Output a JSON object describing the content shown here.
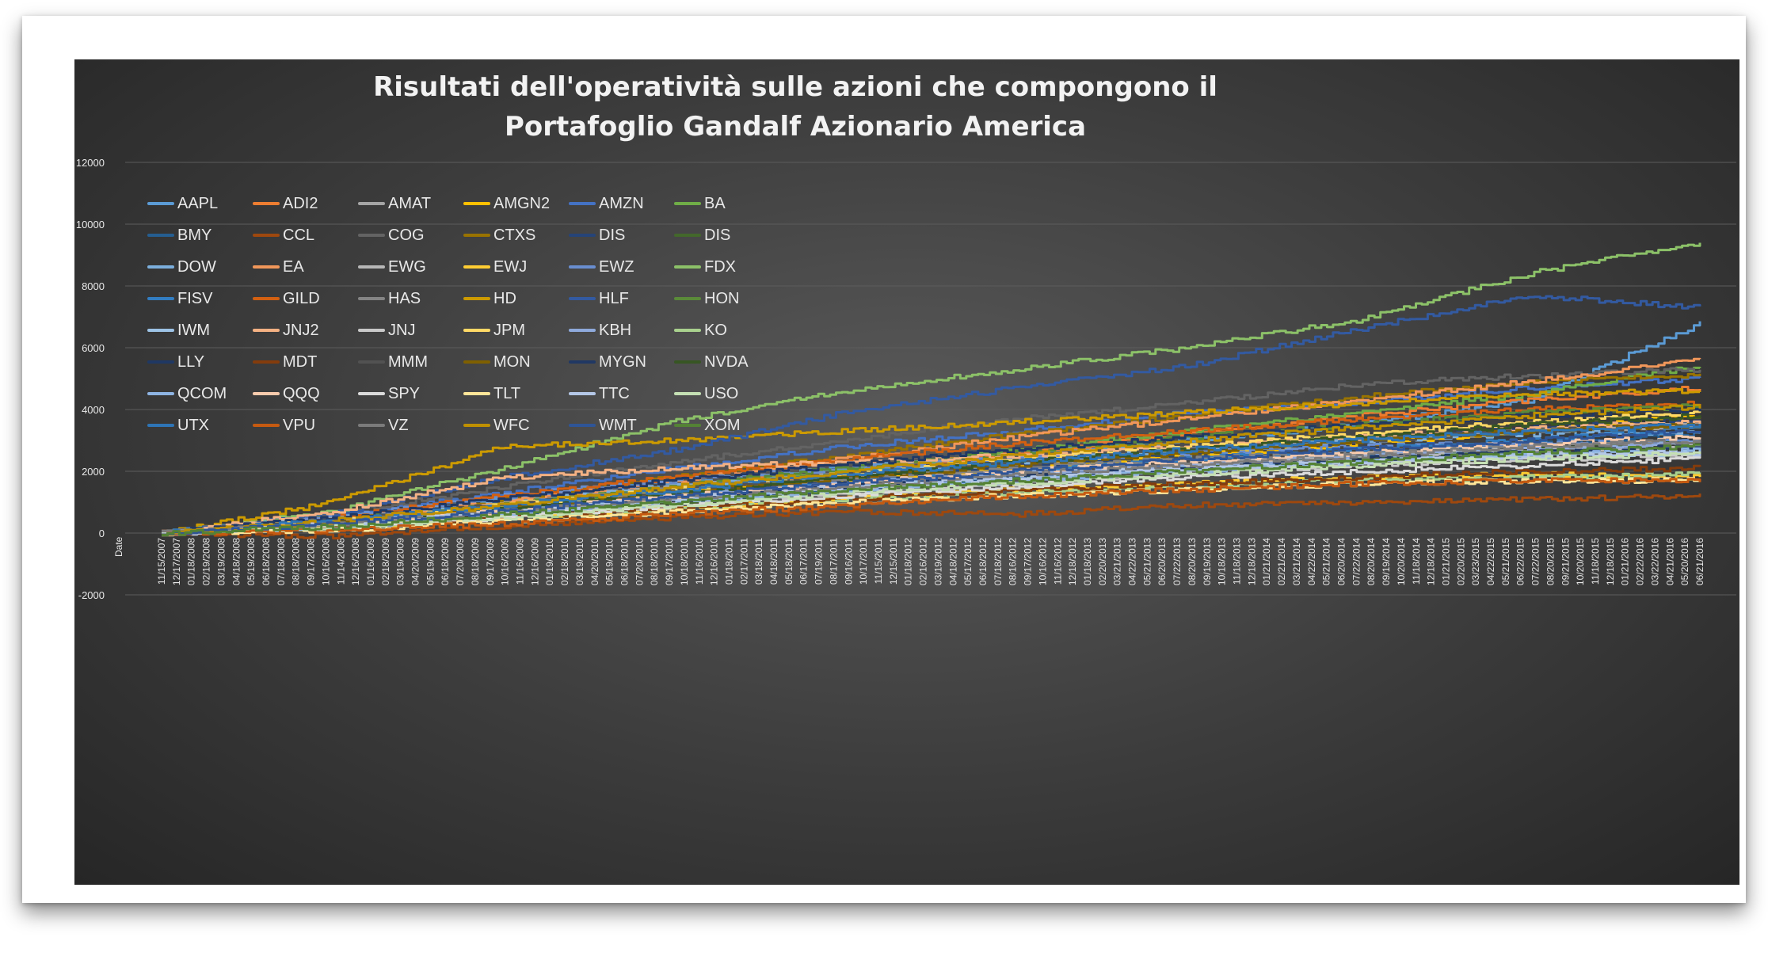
{
  "title_lines": [
    "Risultati dell'operatività sulle azioni che compongono il",
    "Portafoglio Gandalf Azionario America"
  ],
  "colors": {
    "background": "#3a3a3a",
    "gridline": "#5c5c5c",
    "text": "#e8e8e8"
  },
  "chart_data": {
    "type": "line",
    "title": "Risultati dell'operatività sulle azioni che compongono il Portafoglio Gandalf Azionario America",
    "xlabel": "Date",
    "ylabel": "",
    "ylim": [
      -2000,
      12000
    ],
    "yticks": [
      12000,
      10000,
      8000,
      6000,
      4000,
      2000,
      0,
      -2000
    ],
    "grid": true,
    "legend_position": "top-left",
    "x_start": "2007-11-15",
    "x_end": "2016-06-30",
    "x_tick_labels": [
      "11/15/2007",
      "12/17/2007",
      "01/18/2008",
      "02/19/2008",
      "03/19/2008",
      "04/18/2008",
      "05/19/2008",
      "06/18/2008",
      "07/18/2008",
      "08/18/2008",
      "09/17/2008",
      "10/16/2008",
      "11/14/2008",
      "12/16/2008",
      "01/16/2009",
      "02/18/2009",
      "03/19/2009",
      "04/20/2009",
      "05/19/2009",
      "06/18/2009",
      "07/20/2009",
      "08/18/2009",
      "09/17/2009",
      "10/16/2009",
      "11/16/2009",
      "12/16/2009",
      "01/19/2010",
      "02/18/2010",
      "03/19/2010",
      "04/20/2010",
      "05/19/2010",
      "06/18/2010",
      "07/20/2010",
      "08/18/2010",
      "09/17/2010",
      "10/18/2010",
      "11/16/2010",
      "12/16/2010",
      "01/18/2011",
      "02/17/2011",
      "03/18/2011",
      "04/18/2011",
      "05/18/2011",
      "06/17/2011",
      "07/19/2011",
      "08/17/2011",
      "09/16/2011",
      "10/17/2011",
      "11/15/2011",
      "12/15/2011",
      "01/18/2012",
      "02/16/2012",
      "03/19/2012",
      "04/18/2012",
      "05/17/2012",
      "06/18/2012",
      "07/18/2012",
      "08/16/2012",
      "09/17/2012",
      "10/16/2012",
      "11/16/2012",
      "12/18/2012",
      "01/18/2013",
      "02/20/2013",
      "03/21/2013",
      "04/22/2013",
      "05/21/2013",
      "06/20/2013",
      "07/22/2013",
      "08/20/2013",
      "09/19/2013",
      "10/18/2013",
      "11/18/2013",
      "12/18/2013",
      "01/21/2014",
      "02/21/2014",
      "03/21/2014",
      "04/22/2014",
      "05/21/2014",
      "06/20/2014",
      "07/22/2014",
      "08/20/2014",
      "09/19/2014",
      "10/20/2014",
      "11/18/2014",
      "12/18/2014",
      "01/21/2015",
      "02/20/2015",
      "03/23/2015",
      "04/22/2015",
      "05/21/2015",
      "06/22/2015",
      "07/22/2015",
      "08/20/2015",
      "09/21/2015",
      "10/20/2015",
      "11/18/2015",
      "12/18/2015",
      "01/21/2016",
      "02/22/2016",
      "03/22/2016",
      "04/21/2016",
      "05/20/2016",
      "06/21/2016"
    ],
    "series": [
      {
        "name": "AAPL",
        "color": "#5b9bd5",
        "values": [
          0,
          500,
          1100,
          1600,
          2100,
          2600,
          3000,
          3500,
          4300,
          6800
        ]
      },
      {
        "name": "ADI2",
        "color": "#ed7d31",
        "values": [
          0,
          300,
          900,
          1500,
          2000,
          2600,
          3200,
          3800,
          4300,
          4700
        ]
      },
      {
        "name": "AMAT",
        "color": "#a5a5a5",
        "values": [
          0,
          400,
          1000,
          1500,
          1900,
          2300,
          2600,
          3000,
          3300,
          3500
        ]
      },
      {
        "name": "AMGN2",
        "color": "#ffc000",
        "values": [
          0,
          300,
          800,
          1300,
          1700,
          2100,
          2500,
          2900,
          3300,
          3800
        ]
      },
      {
        "name": "AMZN",
        "color": "#4472c4",
        "values": [
          0,
          600,
          1300,
          2100,
          2800,
          3300,
          3900,
          4200,
          4700,
          5000
        ]
      },
      {
        "name": "BA",
        "color": "#70ad47",
        "values": [
          0,
          300,
          800,
          1400,
          2000,
          2700,
          3300,
          3900,
          4500,
          5400
        ]
      },
      {
        "name": "BMY",
        "color": "#255e91",
        "values": [
          0,
          200,
          600,
          1000,
          1400,
          1800,
          2200,
          2500,
          2900,
          3200
        ]
      },
      {
        "name": "CCL",
        "color": "#9e480e",
        "values": [
          0,
          -100,
          200,
          500,
          700,
          600,
          900,
          1000,
          1100,
          1200
        ]
      },
      {
        "name": "COG",
        "color": "#636363",
        "values": [
          0,
          600,
          1500,
          2300,
          3000,
          3700,
          4200,
          4800,
          5100,
          5300
        ]
      },
      {
        "name": "CTXS",
        "color": "#997300",
        "values": [
          0,
          400,
          1100,
          1800,
          2500,
          3200,
          3800,
          4400,
          4900,
          5100
        ]
      },
      {
        "name": "DIS",
        "color": "#264478",
        "values": [
          0,
          300,
          700,
          1200,
          1700,
          2200,
          2600,
          3000,
          3400,
          3700
        ]
      },
      {
        "name": "DIS",
        "color": "#43682b",
        "values": [
          0,
          200,
          600,
          1000,
          1400,
          1800,
          2100,
          2400,
          2700,
          3000
        ]
      },
      {
        "name": "DOW",
        "color": "#7cafdd",
        "values": [
          0,
          500,
          1000,
          1500,
          1900,
          2300,
          2700,
          3000,
          3200,
          3300
        ]
      },
      {
        "name": "EA",
        "color": "#f1975a",
        "values": [
          0,
          400,
          1000,
          1700,
          2400,
          3100,
          3700,
          4300,
          4900,
          5600
        ]
      },
      {
        "name": "EWG",
        "color": "#b7b7b7",
        "values": [
          0,
          300,
          700,
          1100,
          1500,
          1900,
          2200,
          2500,
          2700,
          2800
        ]
      },
      {
        "name": "EWJ",
        "color": "#ffcd33",
        "values": [
          0,
          200,
          500,
          800,
          1100,
          1400,
          1600,
          1800,
          1900,
          1800
        ]
      },
      {
        "name": "EWZ",
        "color": "#698ed0",
        "values": [
          0,
          500,
          1200,
          1700,
          2100,
          2400,
          2600,
          2800,
          2900,
          3000
        ]
      },
      {
        "name": "FDX",
        "color": "#8cc168",
        "values": [
          0,
          700,
          2100,
          3600,
          4600,
          5300,
          6000,
          6900,
          8400,
          9400
        ]
      },
      {
        "name": "FISV",
        "color": "#327dc2",
        "values": [
          0,
          300,
          800,
          1200,
          1600,
          2000,
          2400,
          2700,
          3000,
          3400
        ]
      },
      {
        "name": "GILD",
        "color": "#d26012",
        "values": [
          0,
          500,
          1200,
          1800,
          2400,
          2900,
          3300,
          3700,
          4000,
          4200
        ]
      },
      {
        "name": "HAS",
        "color": "#848484",
        "values": [
          0,
          300,
          900,
          1400,
          1800,
          2100,
          2400,
          2600,
          2800,
          3000
        ]
      },
      {
        "name": "HD",
        "color": "#cc9a00",
        "values": [
          0,
          1000,
          2800,
          3000,
          3300,
          3600,
          3900,
          4200,
          4500,
          4600
        ]
      },
      {
        "name": "HLF",
        "color": "#335aa1",
        "values": [
          0,
          600,
          1800,
          2700,
          3900,
          4700,
          5400,
          6600,
          7700,
          7300
        ]
      },
      {
        "name": "HON",
        "color": "#5a8a39",
        "values": [
          0,
          400,
          900,
          1500,
          2100,
          2600,
          3100,
          3500,
          3900,
          4100
        ]
      },
      {
        "name": "IWM",
        "color": "#9dc3e6",
        "values": [
          0,
          300,
          700,
          1100,
          1500,
          1800,
          2100,
          2300,
          2500,
          2600
        ]
      },
      {
        "name": "JNJ2",
        "color": "#f4b183",
        "values": [
          0,
          700,
          1800,
          2100,
          2300,
          2500,
          2800,
          3100,
          3400,
          3600
        ]
      },
      {
        "name": "JNJ",
        "color": "#c9c9c9",
        "values": [
          0,
          200,
          600,
          900,
          1300,
          1600,
          1900,
          2200,
          2400,
          2500
        ]
      },
      {
        "name": "JPM",
        "color": "#ffd966",
        "values": [
          0,
          400,
          900,
          1400,
          1900,
          2400,
          2800,
          3200,
          3600,
          3900
        ]
      },
      {
        "name": "KBH",
        "color": "#8faadc",
        "values": [
          0,
          300,
          800,
          1200,
          1600,
          1900,
          2200,
          2500,
          2700,
          2900
        ]
      },
      {
        "name": "KO",
        "color": "#a9d18e",
        "values": [
          0,
          200,
          500,
          800,
          1100,
          1300,
          1500,
          1700,
          1800,
          1900
        ]
      },
      {
        "name": "LLY",
        "color": "#1f3864",
        "values": [
          0,
          300,
          700,
          1100,
          1500,
          1800,
          2100,
          2400,
          2600,
          2800
        ]
      },
      {
        "name": "MDT",
        "color": "#843c0c",
        "values": [
          0,
          200,
          500,
          800,
          1100,
          1400,
          1600,
          1800,
          2000,
          2100
        ]
      },
      {
        "name": "MMM",
        "color": "#525252",
        "values": [
          0,
          400,
          900,
          1400,
          1900,
          2300,
          2700,
          3000,
          3300,
          3500
        ]
      },
      {
        "name": "MON",
        "color": "#7f6000",
        "values": [
          0,
          300,
          800,
          1300,
          1800,
          2200,
          2600,
          3000,
          3300,
          3500
        ]
      },
      {
        "name": "MYGN",
        "color": "#203864",
        "values": [
          0,
          500,
          1100,
          1700,
          2200,
          2700,
          3100,
          3500,
          3800,
          4000
        ]
      },
      {
        "name": "NVDA",
        "color": "#375623",
        "values": [
          0,
          300,
          800,
          1300,
          1800,
          2300,
          2700,
          3100,
          3500,
          3800
        ]
      },
      {
        "name": "QCOM",
        "color": "#8eb4e3",
        "values": [
          0,
          200,
          600,
          1000,
          1400,
          1700,
          2000,
          2300,
          2500,
          2700
        ]
      },
      {
        "name": "QQQ",
        "color": "#f8cbad",
        "values": [
          0,
          300,
          700,
          1200,
          1600,
          2000,
          2300,
          2600,
          2900,
          3100
        ]
      },
      {
        "name": "SPY",
        "color": "#dbdbdb",
        "values": [
          0,
          200,
          500,
          900,
          1200,
          1500,
          1800,
          2000,
          2200,
          2400
        ]
      },
      {
        "name": "TLT",
        "color": "#ffe699",
        "values": [
          0,
          100,
          400,
          700,
          1000,
          1200,
          1400,
          1600,
          1700,
          1700
        ]
      },
      {
        "name": "TTC",
        "color": "#b4c7e7",
        "values": [
          0,
          300,
          700,
          1100,
          1500,
          1800,
          2100,
          2300,
          2500,
          2600
        ]
      },
      {
        "name": "USO",
        "color": "#c5e0b4",
        "values": [
          0,
          200,
          500,
          900,
          1300,
          1600,
          1900,
          2200,
          2400,
          2600
        ]
      },
      {
        "name": "UTX",
        "color": "#2e75b6",
        "values": [
          0,
          400,
          900,
          1400,
          1900,
          2300,
          2700,
          3000,
          3300,
          3500
        ]
      },
      {
        "name": "VPU",
        "color": "#c55a11",
        "values": [
          0,
          100,
          300,
          600,
          900,
          1200,
          1400,
          1600,
          1700,
          1700
        ]
      },
      {
        "name": "VZ",
        "color": "#7b7b7b",
        "values": [
          0,
          300,
          700,
          1100,
          1500,
          1900,
          2200,
          2500,
          2800,
          3000
        ]
      },
      {
        "name": "WFC",
        "color": "#bf9000",
        "values": [
          0,
          400,
          900,
          1500,
          2000,
          2500,
          3000,
          3400,
          3800,
          4100
        ]
      },
      {
        "name": "WMT",
        "color": "#2f5597",
        "values": [
          0,
          300,
          700,
          1200,
          1600,
          2000,
          2400,
          2700,
          3000,
          3300
        ]
      },
      {
        "name": "XOM",
        "color": "#548235",
        "values": [
          0,
          200,
          600,
          1000,
          1400,
          1700,
          2000,
          2300,
          2600,
          2800
        ]
      }
    ]
  }
}
